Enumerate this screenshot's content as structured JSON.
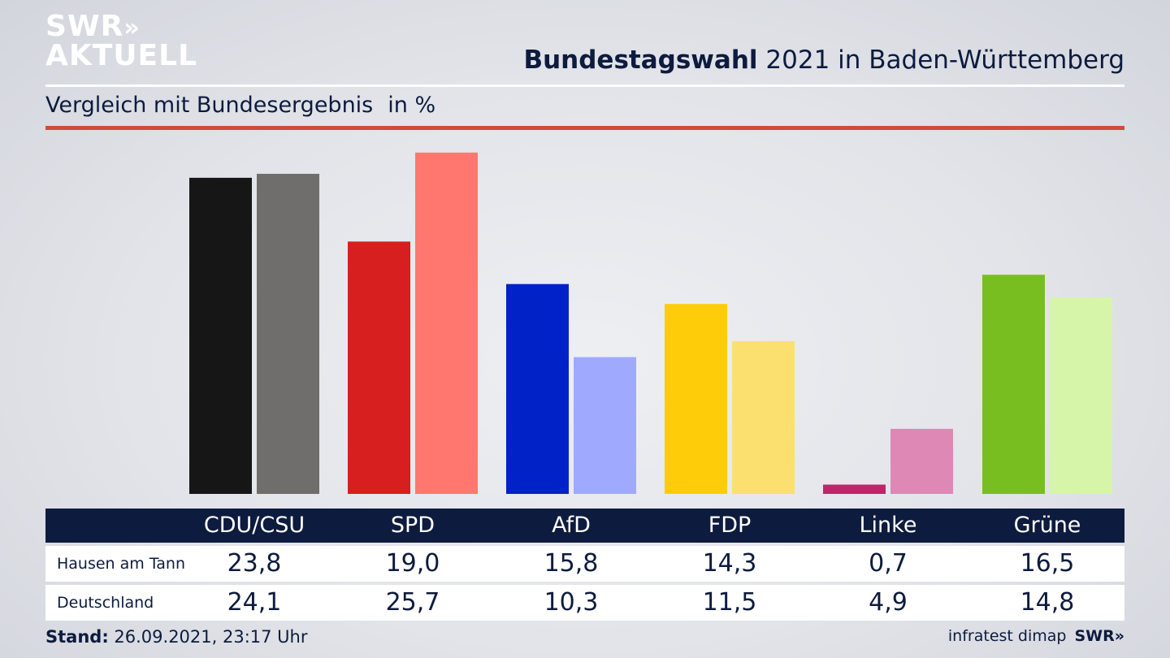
{
  "brand": {
    "logo_line1": "SWR",
    "logo_chevrons": "»",
    "logo_line2": "AKTUELL"
  },
  "header": {
    "title_bold": "Bundestagswahl",
    "title_rest": " 2021 in Baden-Württemberg",
    "subtitle": "Vergleich mit Bundesergebnis",
    "unit": "in %"
  },
  "colors": {
    "accent_rule": "#d04a3c",
    "header_bg": "#0d1b3e"
  },
  "chart_data": {
    "type": "bar",
    "title": "Bundestagswahl 2021 in Baden-Württemberg",
    "subtitle": "Vergleich mit Bundesergebnis",
    "unit": "in %",
    "categories": [
      "CDU/CSU",
      "SPD",
      "AfD",
      "FDP",
      "Linke",
      "Grüne"
    ],
    "series": [
      {
        "name": "Hausen am Tann",
        "values": [
          23.8,
          19.0,
          15.8,
          14.3,
          0.7,
          16.5
        ],
        "labels": [
          "23,8",
          "19,0",
          "15,8",
          "14,3",
          "0,7",
          "16,5"
        ],
        "colors": [
          "#161616",
          "#d71f1f",
          "#0022c6",
          "#ffcc0a",
          "#c0246b",
          "#78be20"
        ]
      },
      {
        "name": "Deutschland",
        "values": [
          24.1,
          25.7,
          10.3,
          11.5,
          4.9,
          14.8
        ],
        "labels": [
          "24,1",
          "25,7",
          "10,3",
          "11,5",
          "4,9",
          "14,8"
        ],
        "colors": [
          "#6f6e6c",
          "#ff776e",
          "#9faaff",
          "#fbe06f",
          "#de88b6",
          "#d6f5a8"
        ]
      }
    ],
    "grid": false,
    "legend": "table-below"
  },
  "footer": {
    "stand_label": "Stand:",
    "stand_value": " 26.09.2021, 23:17 Uhr",
    "source": "infratest dimap",
    "source_logo": "SWR»"
  }
}
